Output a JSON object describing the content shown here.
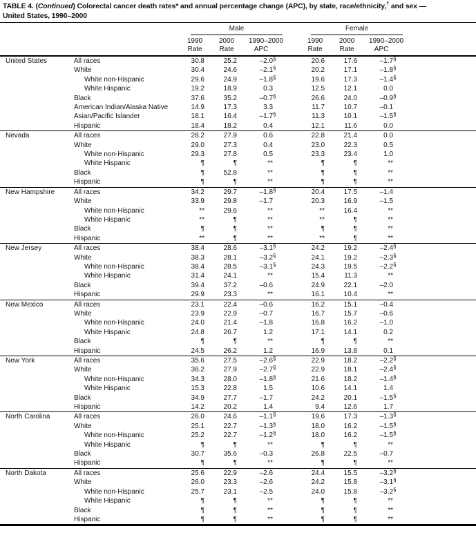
{
  "title": {
    "part1": "TABLE 4. (",
    "part2_italic": "Continued",
    "part3": ") Colorectal cancer death rates* and annual percentage change (APC), by state, race/ethnicity,",
    "dagger": "†",
    "part4": " and sex —",
    "line2": "United States, 1990–2000"
  },
  "header": {
    "male": "Male",
    "female": "Female",
    "columns": {
      "y1990": "1990",
      "y2000": "2000",
      "range": "1990–2000",
      "rate": "Rate",
      "apc": "APC"
    }
  },
  "groups": [
    {
      "state": "United States",
      "rows": [
        {
          "label": "All races",
          "indent": false,
          "cells": [
            "30.8",
            "25.2",
            "–2.0§",
            "20.6",
            "17.6",
            "–1.7§"
          ]
        },
        {
          "label": "White",
          "indent": false,
          "cells": [
            "30.4",
            "24.6",
            "–2.1§",
            "20.2",
            "17.1",
            "–1.8§"
          ]
        },
        {
          "label": "White non-Hispanic",
          "indent": true,
          "cells": [
            "29.6",
            "24.9",
            "–1.8§",
            "19.6",
            "17.3",
            "–1.4§"
          ]
        },
        {
          "label": "White Hispanic",
          "indent": true,
          "cells": [
            "19.2",
            "18.9",
            "0.3",
            "12.5",
            "12.1",
            "0.0"
          ]
        },
        {
          "label": "Black",
          "indent": false,
          "cells": [
            "37.6",
            "35.2",
            "–0.7§",
            "26.6",
            "24.0",
            "–0.9§"
          ]
        },
        {
          "label": "American Indian/Alaska Native",
          "indent": false,
          "cells": [
            "14.9",
            "17.3",
            "3.3",
            "11.7",
            "10.7",
            "–0.1"
          ]
        },
        {
          "label": "Asian/Pacific Islander",
          "indent": false,
          "cells": [
            "18.1",
            "16.4",
            "–1.7§",
            "11.3",
            "10.1",
            "–1.5§"
          ]
        },
        {
          "label": "Hispanic",
          "indent": false,
          "cells": [
            "18.4",
            "18.2",
            "0.4",
            "12.1",
            "11.6",
            "0.0"
          ]
        }
      ]
    },
    {
      "state": "Nevada",
      "rows": [
        {
          "label": "All races",
          "indent": false,
          "cells": [
            "28.2",
            "27.9",
            "0.6",
            "22.8",
            "21.4",
            "0.0"
          ]
        },
        {
          "label": "White",
          "indent": false,
          "cells": [
            "29.0",
            "27.3",
            "0.4",
            "23.0",
            "22.3",
            "0.5"
          ]
        },
        {
          "label": "White non-Hispanic",
          "indent": true,
          "cells": [
            "29.3",
            "27.8",
            "0.5",
            "23.3",
            "23.4",
            "1.0"
          ]
        },
        {
          "label": "White Hispanic",
          "indent": true,
          "cells": [
            "¶",
            "¶",
            "**",
            "¶",
            "¶",
            "**"
          ]
        },
        {
          "label": "Black",
          "indent": false,
          "cells": [
            "¶",
            "52.8",
            "**",
            "¶",
            "¶",
            "**"
          ]
        },
        {
          "label": "Hispanic",
          "indent": false,
          "cells": [
            "¶",
            "¶",
            "**",
            "¶",
            "¶",
            "**"
          ]
        }
      ]
    },
    {
      "state": "New Hampshire",
      "rows": [
        {
          "label": "All races",
          "indent": false,
          "cells": [
            "34.2",
            "29.7",
            "–1.8§",
            "20.4",
            "17.5",
            "–1.4"
          ]
        },
        {
          "label": "White",
          "indent": false,
          "cells": [
            "33.9",
            "29.8",
            "–1.7",
            "20.3",
            "16.9",
            "–1.5"
          ]
        },
        {
          "label": "White non-Hispanic",
          "indent": true,
          "cells": [
            "**",
            "29.6",
            "**",
            "**",
            "16.4",
            "**"
          ]
        },
        {
          "label": "White Hispanic",
          "indent": true,
          "cells": [
            "**",
            "¶",
            "**",
            "**",
            "¶",
            "**"
          ]
        },
        {
          "label": "Black",
          "indent": false,
          "cells": [
            "¶",
            "¶",
            "**",
            "¶",
            "¶",
            "**"
          ]
        },
        {
          "label": "Hispanic",
          "indent": false,
          "cells": [
            "**",
            "¶",
            "**",
            "**",
            "¶",
            "**"
          ]
        }
      ]
    },
    {
      "state": "New Jersey",
      "rows": [
        {
          "label": "All races",
          "indent": false,
          "cells": [
            "38.4",
            "28.6",
            "–3.1§",
            "24.2",
            "19.2",
            "–2.4§"
          ]
        },
        {
          "label": "White",
          "indent": false,
          "cells": [
            "38.3",
            "28.1",
            "–3.2§",
            "24.1",
            "19.2",
            "–2.3§"
          ]
        },
        {
          "label": "White non-Hispanic",
          "indent": true,
          "cells": [
            "38.4",
            "28.5",
            "–3.1§",
            "24.3",
            "19.5",
            "–2.2§"
          ]
        },
        {
          "label": "White Hispanic",
          "indent": true,
          "cells": [
            "31.4",
            "24.1",
            "**",
            "15.4",
            "11.3",
            "**"
          ]
        },
        {
          "label": "Black",
          "indent": false,
          "cells": [
            "39.4",
            "37.2",
            "–0.6",
            "24.9",
            "22.1",
            "–2.0"
          ]
        },
        {
          "label": "Hispanic",
          "indent": false,
          "cells": [
            "29.9",
            "23.3",
            "**",
            "16.1",
            "10.4",
            "**"
          ]
        }
      ]
    },
    {
      "state": "New Mexico",
      "rows": [
        {
          "label": "All races",
          "indent": false,
          "cells": [
            "23.1",
            "22.4",
            "–0.6",
            "16.2",
            "15.1",
            "–0.4"
          ]
        },
        {
          "label": "White",
          "indent": false,
          "cells": [
            "23.9",
            "22.9",
            "–0.7",
            "16.7",
            "15.7",
            "–0.6"
          ]
        },
        {
          "label": "White non-Hispanic",
          "indent": true,
          "cells": [
            "24.0",
            "21.4",
            "–1.8",
            "16.8",
            "16.2",
            "–1.0"
          ]
        },
        {
          "label": "White Hispanic",
          "indent": true,
          "cells": [
            "24.8",
            "26.7",
            "1.2",
            "17.1",
            "14.1",
            "0.2"
          ]
        },
        {
          "label": "Black",
          "indent": false,
          "cells": [
            "¶",
            "¶",
            "**",
            "¶",
            "¶",
            "**"
          ]
        },
        {
          "label": "Hispanic",
          "indent": false,
          "cells": [
            "24.5",
            "26.2",
            "1.2",
            "16.9",
            "13.8",
            "0.1"
          ]
        }
      ]
    },
    {
      "state": "New York",
      "rows": [
        {
          "label": "All races",
          "indent": false,
          "cells": [
            "35.6",
            "27.5",
            "–2.6§",
            "22.9",
            "18.2",
            "–2.2§"
          ]
        },
        {
          "label": "White",
          "indent": false,
          "cells": [
            "36.2",
            "27.9",
            "–2.7§",
            "22.9",
            "18.1",
            "–2.4§"
          ]
        },
        {
          "label": "White non-Hispanic",
          "indent": true,
          "cells": [
            "34.3",
            "28.0",
            "–1.8§",
            "21.6",
            "18.2",
            "–1.4§"
          ]
        },
        {
          "label": "White Hispanic",
          "indent": true,
          "cells": [
            "15.3",
            "22.8",
            "1.5",
            "10.6",
            "14.1",
            "1.4"
          ]
        },
        {
          "label": "Black",
          "indent": false,
          "cells": [
            "34.9",
            "27.7",
            "–1.7",
            "24.2",
            "20.1",
            "–1.5§"
          ]
        },
        {
          "label": "Hispanic",
          "indent": false,
          "cells": [
            "14.2",
            "20.2",
            "1.4",
            "9.4",
            "12.6",
            "1.7"
          ]
        }
      ]
    },
    {
      "state": "North Carolina",
      "rows": [
        {
          "label": "All races",
          "indent": false,
          "cells": [
            "26.0",
            "24.6",
            "–1.1§",
            "19.6",
            "17.3",
            "–1.3§"
          ]
        },
        {
          "label": "White",
          "indent": false,
          "cells": [
            "25.1",
            "22.7",
            "–1.3§",
            "18.0",
            "16.2",
            "–1.5§"
          ]
        },
        {
          "label": "White non-Hispanic",
          "indent": true,
          "cells": [
            "25.2",
            "22.7",
            "–1.2§",
            "18.0",
            "16.2",
            "–1.5§"
          ]
        },
        {
          "label": "White Hispanic",
          "indent": true,
          "cells": [
            "¶",
            "¶",
            "**",
            "¶",
            "¶",
            "**"
          ]
        },
        {
          "label": "Black",
          "indent": false,
          "cells": [
            "30.7",
            "35.6",
            "–0.3",
            "26.8",
            "22.5",
            "–0.7"
          ]
        },
        {
          "label": "Hispanic",
          "indent": false,
          "cells": [
            "¶",
            "¶",
            "**",
            "¶",
            "¶",
            "**"
          ]
        }
      ]
    },
    {
      "state": "North Dakota",
      "rows": [
        {
          "label": "All races",
          "indent": false,
          "cells": [
            "25.6",
            "22.9",
            "–2.6",
            "24.4",
            "15.5",
            "–3.2§"
          ]
        },
        {
          "label": "White",
          "indent": false,
          "cells": [
            "26.0",
            "23.3",
            "–2.6",
            "24.2",
            "15.8",
            "–3.1§"
          ]
        },
        {
          "label": "White non-Hispanic",
          "indent": true,
          "cells": [
            "25.7",
            "23.1",
            "–2.5",
            "24.0",
            "15.8",
            "–3.2§"
          ]
        },
        {
          "label": "White Hispanic",
          "indent": true,
          "cells": [
            "¶",
            "¶",
            "**",
            "¶",
            "¶",
            "**"
          ]
        },
        {
          "label": "Black",
          "indent": false,
          "cells": [
            "¶",
            "¶",
            "**",
            "¶",
            "¶",
            "**"
          ]
        },
        {
          "label": "Hispanic",
          "indent": false,
          "cells": [
            "¶",
            "¶",
            "**",
            "¶",
            "¶",
            "**"
          ]
        }
      ]
    }
  ]
}
